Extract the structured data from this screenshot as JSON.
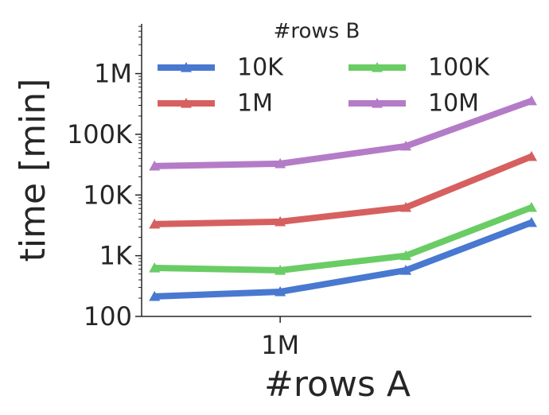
{
  "chart_data": {
    "type": "line",
    "x_label": "#rows A",
    "y_label": "time [min]",
    "x": [
      316228,
      1000000,
      3162278,
      10000000
    ],
    "xscale": "log",
    "yscale": "log",
    "xlim": [
      281000,
      10000000
    ],
    "xticks": [
      {
        "value": 1000000,
        "label": "1M"
      }
    ],
    "ylim": [
      100,
      6600000
    ],
    "yticks": [
      100,
      {
        "value": 1000,
        "label": "1K"
      },
      {
        "value": 10000,
        "label": "10K"
      },
      {
        "value": 100000,
        "label": "100K"
      },
      {
        "value": 1000000,
        "label": "1M"
      }
    ],
    "legend_title": "#rows B",
    "legend_position": "top",
    "series": [
      {
        "name": "10K",
        "color": "#4878cf",
        "values": [
          213,
          255,
          575,
          3520
        ]
      },
      {
        "name": "100K",
        "color": "#6acc65",
        "values": [
          630,
          575,
          1000,
          6240
        ]
      },
      {
        "name": "1M",
        "color": "#d65f5f",
        "values": [
          3320,
          3630,
          6240,
          43100
        ]
      },
      {
        "name": "10M",
        "color": "#b47cc7",
        "values": [
          30000,
          32800,
          63800,
          356000
        ]
      }
    ]
  }
}
